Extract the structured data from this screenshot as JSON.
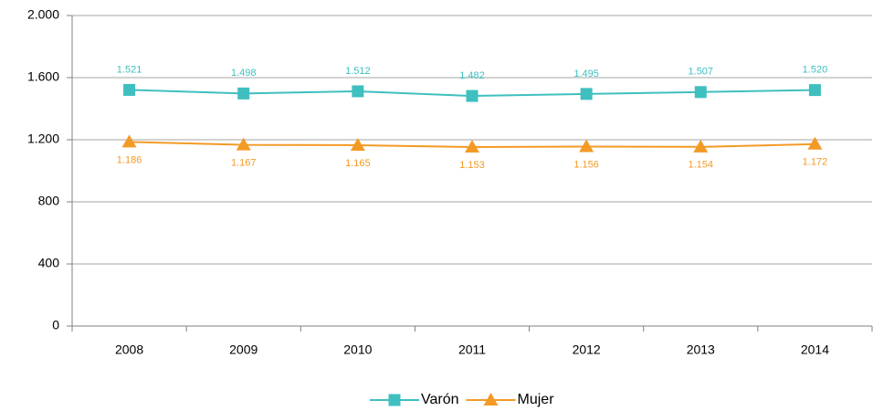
{
  "chart_data": {
    "type": "line",
    "categories": [
      "2008",
      "2009",
      "2010",
      "2011",
      "2012",
      "2013",
      "2014"
    ],
    "series": [
      {
        "name": "Varón",
        "color": "#3fbfbf",
        "marker": "square",
        "label_position": "above",
        "values": [
          1521,
          1498,
          1512,
          1482,
          1495,
          1507,
          1520
        ],
        "value_labels": [
          "1.521",
          "1.498",
          "1.512",
          "1.482",
          "1.495",
          "1.507",
          "1.520"
        ]
      },
      {
        "name": "Mujer",
        "color": "#f39a26",
        "marker": "triangle",
        "label_position": "below",
        "values": [
          1186,
          1167,
          1165,
          1153,
          1156,
          1154,
          1172
        ],
        "value_labels": [
          "1.186",
          "1.167",
          "1.165",
          "1.153",
          "1.156",
          "1.154",
          "1.172"
        ]
      }
    ],
    "ylim": [
      0,
      2000
    ],
    "yticks": [
      0,
      400,
      800,
      {
        "value": 1200,
        "label": "1.200"
      },
      {
        "value": 1600,
        "label": "1.600"
      },
      {
        "value": 2000,
        "label": "2.000"
      }
    ],
    "grid": true,
    "legend": "bottom"
  }
}
